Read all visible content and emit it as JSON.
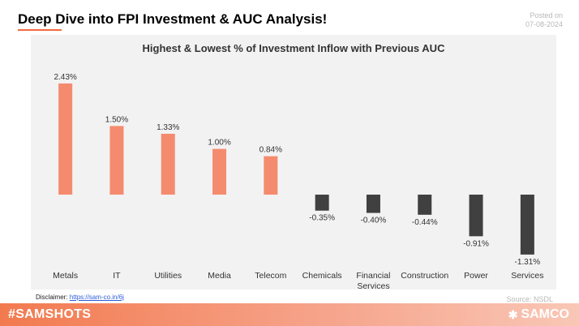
{
  "header": {
    "title": "Deep Dive into FPI Investment & AUC Analysis!",
    "posted_label": "Posted on",
    "posted_date": "07-08-2024"
  },
  "footer": {
    "disclaimer_label": "Disclaimer:",
    "disclaimer_link": "https://sam-co.in/6j",
    "source": "Source: NSDL",
    "hashtag": "#SAMSHOTS",
    "brand": "SAMCO",
    "brand_icon": "samco-logo-icon"
  },
  "colors": {
    "positive": "#f58b6e",
    "negative": "#404040",
    "accent": "#f26a3e"
  },
  "chart_data": {
    "type": "bar",
    "title": "Highest & Lowest % of Investment Inflow with Previous AUC",
    "categories": [
      "Metals",
      "IT",
      "Utilities",
      "Media",
      "Telecom",
      "Chemicals",
      "Financial Services",
      "Construction",
      "Power",
      "Services"
    ],
    "values": [
      2.43,
      1.5,
      1.33,
      1.0,
      0.84,
      -0.35,
      -0.4,
      -0.44,
      -0.91,
      -1.31
    ],
    "data_labels": [
      "2.43%",
      "1.50%",
      "1.33%",
      "1.00%",
      "0.84%",
      "-0.35%",
      "-0.40%",
      "-0.44%",
      "-0.91%",
      "-1.31%"
    ],
    "xlabel": "",
    "ylabel": "",
    "grid": false,
    "legend": "none"
  }
}
